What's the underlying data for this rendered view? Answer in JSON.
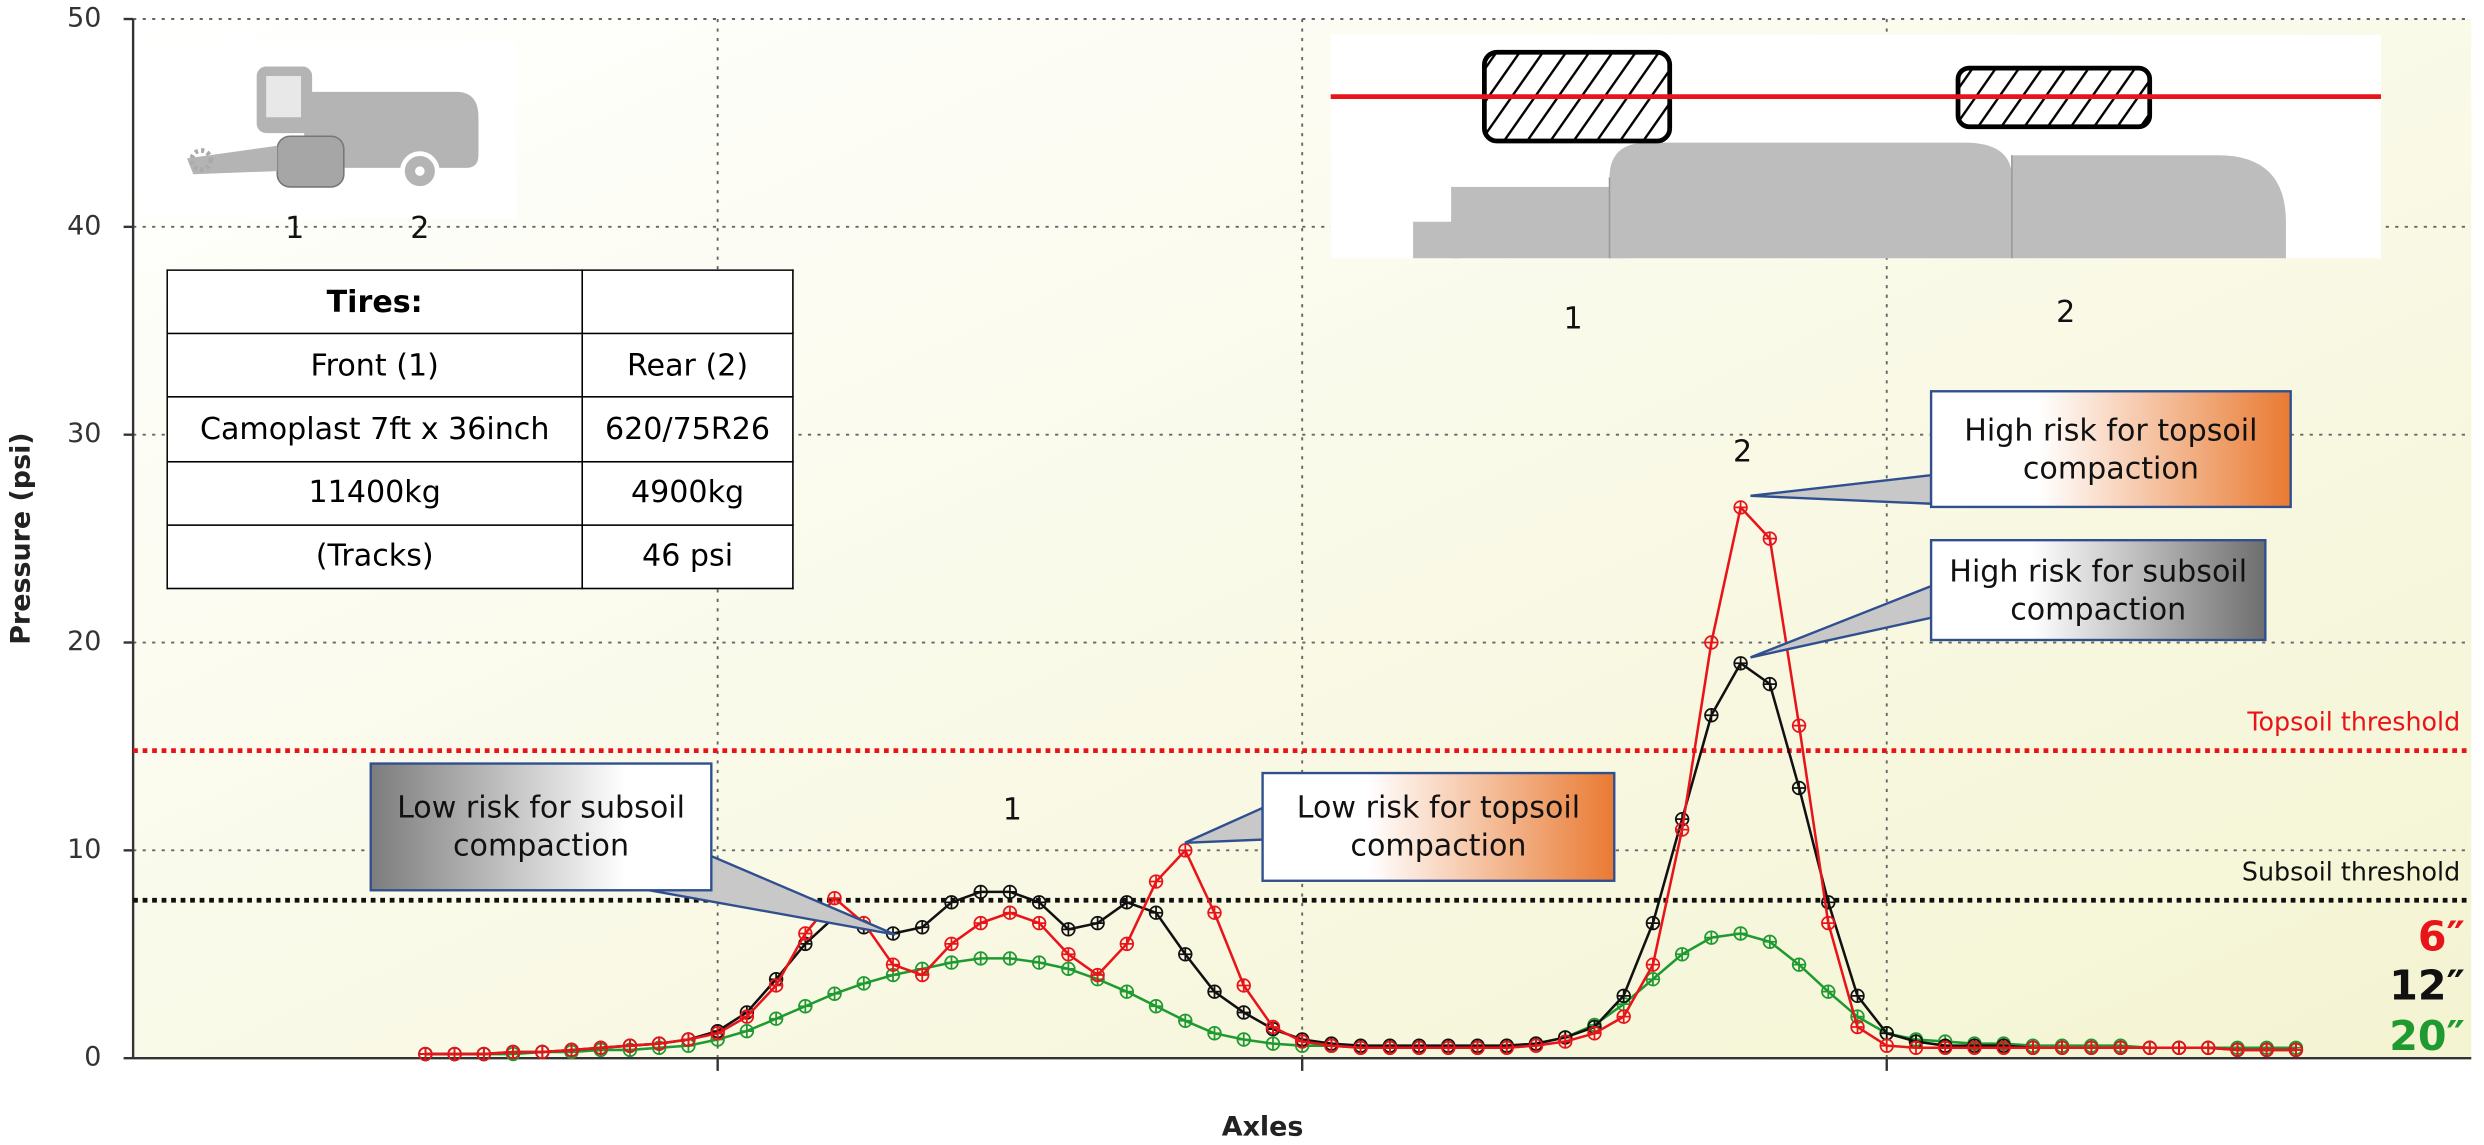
{
  "chart_data": {
    "type": "line",
    "y_label": "Pressure (psi)",
    "x_label": "Axles",
    "x": [
      0.5,
      0.55,
      0.6,
      0.65,
      0.7,
      0.75,
      0.8,
      0.85,
      0.9,
      0.95,
      1.0,
      1.05,
      1.1,
      1.15,
      1.2,
      1.25,
      1.3,
      1.35,
      1.4,
      1.45,
      1.5,
      1.55,
      1.6,
      1.65,
      1.7,
      1.75,
      1.8,
      1.85,
      1.9,
      1.95,
      2.0,
      2.05,
      2.1,
      2.15,
      2.2,
      2.25,
      2.3,
      2.35,
      2.4,
      2.45,
      2.5,
      2.55,
      2.6,
      2.65,
      2.7,
      2.75,
      2.8,
      2.85,
      2.9,
      2.95,
      3.0,
      3.05,
      3.1,
      3.15,
      3.2,
      3.25,
      3.3,
      3.35,
      3.4,
      3.45,
      3.5,
      3.55,
      3.6,
      3.65,
      3.7
    ],
    "xlim": [
      0,
      4
    ],
    "xticks": [
      1,
      2,
      3
    ],
    "ylim": [
      0,
      50
    ],
    "yticks": [
      0,
      10,
      20,
      30,
      40,
      50
    ],
    "grid": true,
    "series": [
      {
        "name": "6″",
        "color": "#e8141a",
        "values": [
          0.2,
          0.2,
          0.2,
          0.3,
          0.3,
          0.4,
          0.5,
          0.6,
          0.7,
          0.9,
          1.2,
          2.0,
          3.5,
          6.0,
          7.7,
          6.5,
          4.5,
          4.0,
          5.5,
          6.5,
          7.0,
          6.5,
          5.0,
          4.0,
          5.5,
          8.5,
          10.0,
          7.0,
          3.5,
          1.5,
          0.8,
          0.6,
          0.5,
          0.5,
          0.5,
          0.5,
          0.5,
          0.5,
          0.6,
          0.8,
          1.2,
          2.0,
          4.5,
          11.0,
          20.0,
          26.5,
          25.0,
          16.0,
          6.5,
          1.5,
          0.6,
          0.5,
          0.5,
          0.5,
          0.5,
          0.5,
          0.5,
          0.5,
          0.5,
          0.5,
          0.5,
          0.5,
          0.4,
          0.4,
          0.4
        ]
      },
      {
        "name": "12″",
        "color": "#111111",
        "values": [
          0.2,
          0.2,
          0.2,
          0.3,
          0.3,
          0.4,
          0.5,
          0.6,
          0.7,
          0.9,
          1.3,
          2.2,
          3.8,
          5.5,
          6.8,
          6.3,
          6.0,
          6.3,
          7.5,
          8.0,
          8.0,
          7.5,
          6.2,
          6.5,
          7.5,
          7.0,
          5.0,
          3.2,
          2.2,
          1.4,
          0.9,
          0.7,
          0.6,
          0.6,
          0.6,
          0.6,
          0.6,
          0.6,
          0.7,
          1.0,
          1.5,
          3.0,
          6.5,
          11.5,
          16.5,
          19.0,
          18.0,
          13.0,
          7.5,
          3.0,
          1.2,
          0.8,
          0.6,
          0.6,
          0.6,
          0.5,
          0.5,
          0.5,
          0.5,
          0.5,
          0.5,
          0.5,
          0.4,
          0.4,
          0.4
        ]
      },
      {
        "name": "20″",
        "color": "#1e9a30",
        "values": [
          0.2,
          0.2,
          0.2,
          0.2,
          0.3,
          0.3,
          0.4,
          0.4,
          0.5,
          0.6,
          0.9,
          1.3,
          1.9,
          2.5,
          3.1,
          3.6,
          4.0,
          4.3,
          4.6,
          4.8,
          4.8,
          4.6,
          4.3,
          3.8,
          3.2,
          2.5,
          1.8,
          1.2,
          0.9,
          0.7,
          0.6,
          0.6,
          0.5,
          0.5,
          0.5,
          0.5,
          0.5,
          0.6,
          0.7,
          1.0,
          1.6,
          2.6,
          3.8,
          5.0,
          5.8,
          6.0,
          5.6,
          4.5,
          3.2,
          2.0,
          1.2,
          0.9,
          0.8,
          0.7,
          0.7,
          0.6,
          0.6,
          0.6,
          0.6,
          0.5,
          0.5,
          0.5,
          0.5,
          0.5,
          0.5
        ]
      }
    ],
    "thresholds": [
      {
        "label": "Topsoil threshold",
        "value": 14.8,
        "color": "#e8141a"
      },
      {
        "label": "Subsoil threshold",
        "value": 7.6,
        "color": "#111111"
      }
    ],
    "annotations": [
      "Low risk for subsoil compaction",
      "Low risk for topsoil compaction",
      "High risk for topsoil compaction",
      "High risk for subsoil compaction"
    ],
    "axle_labels": [
      "1",
      "2"
    ]
  },
  "table": {
    "header": "Tires:",
    "rows": [
      [
        "Front (1)",
        "Rear (2)"
      ],
      [
        "Camoplast 7ft x 36inch",
        "620/75R26"
      ],
      [
        "11400kg",
        "4900kg"
      ],
      [
        "(Tracks)",
        "46 psi"
      ]
    ]
  }
}
